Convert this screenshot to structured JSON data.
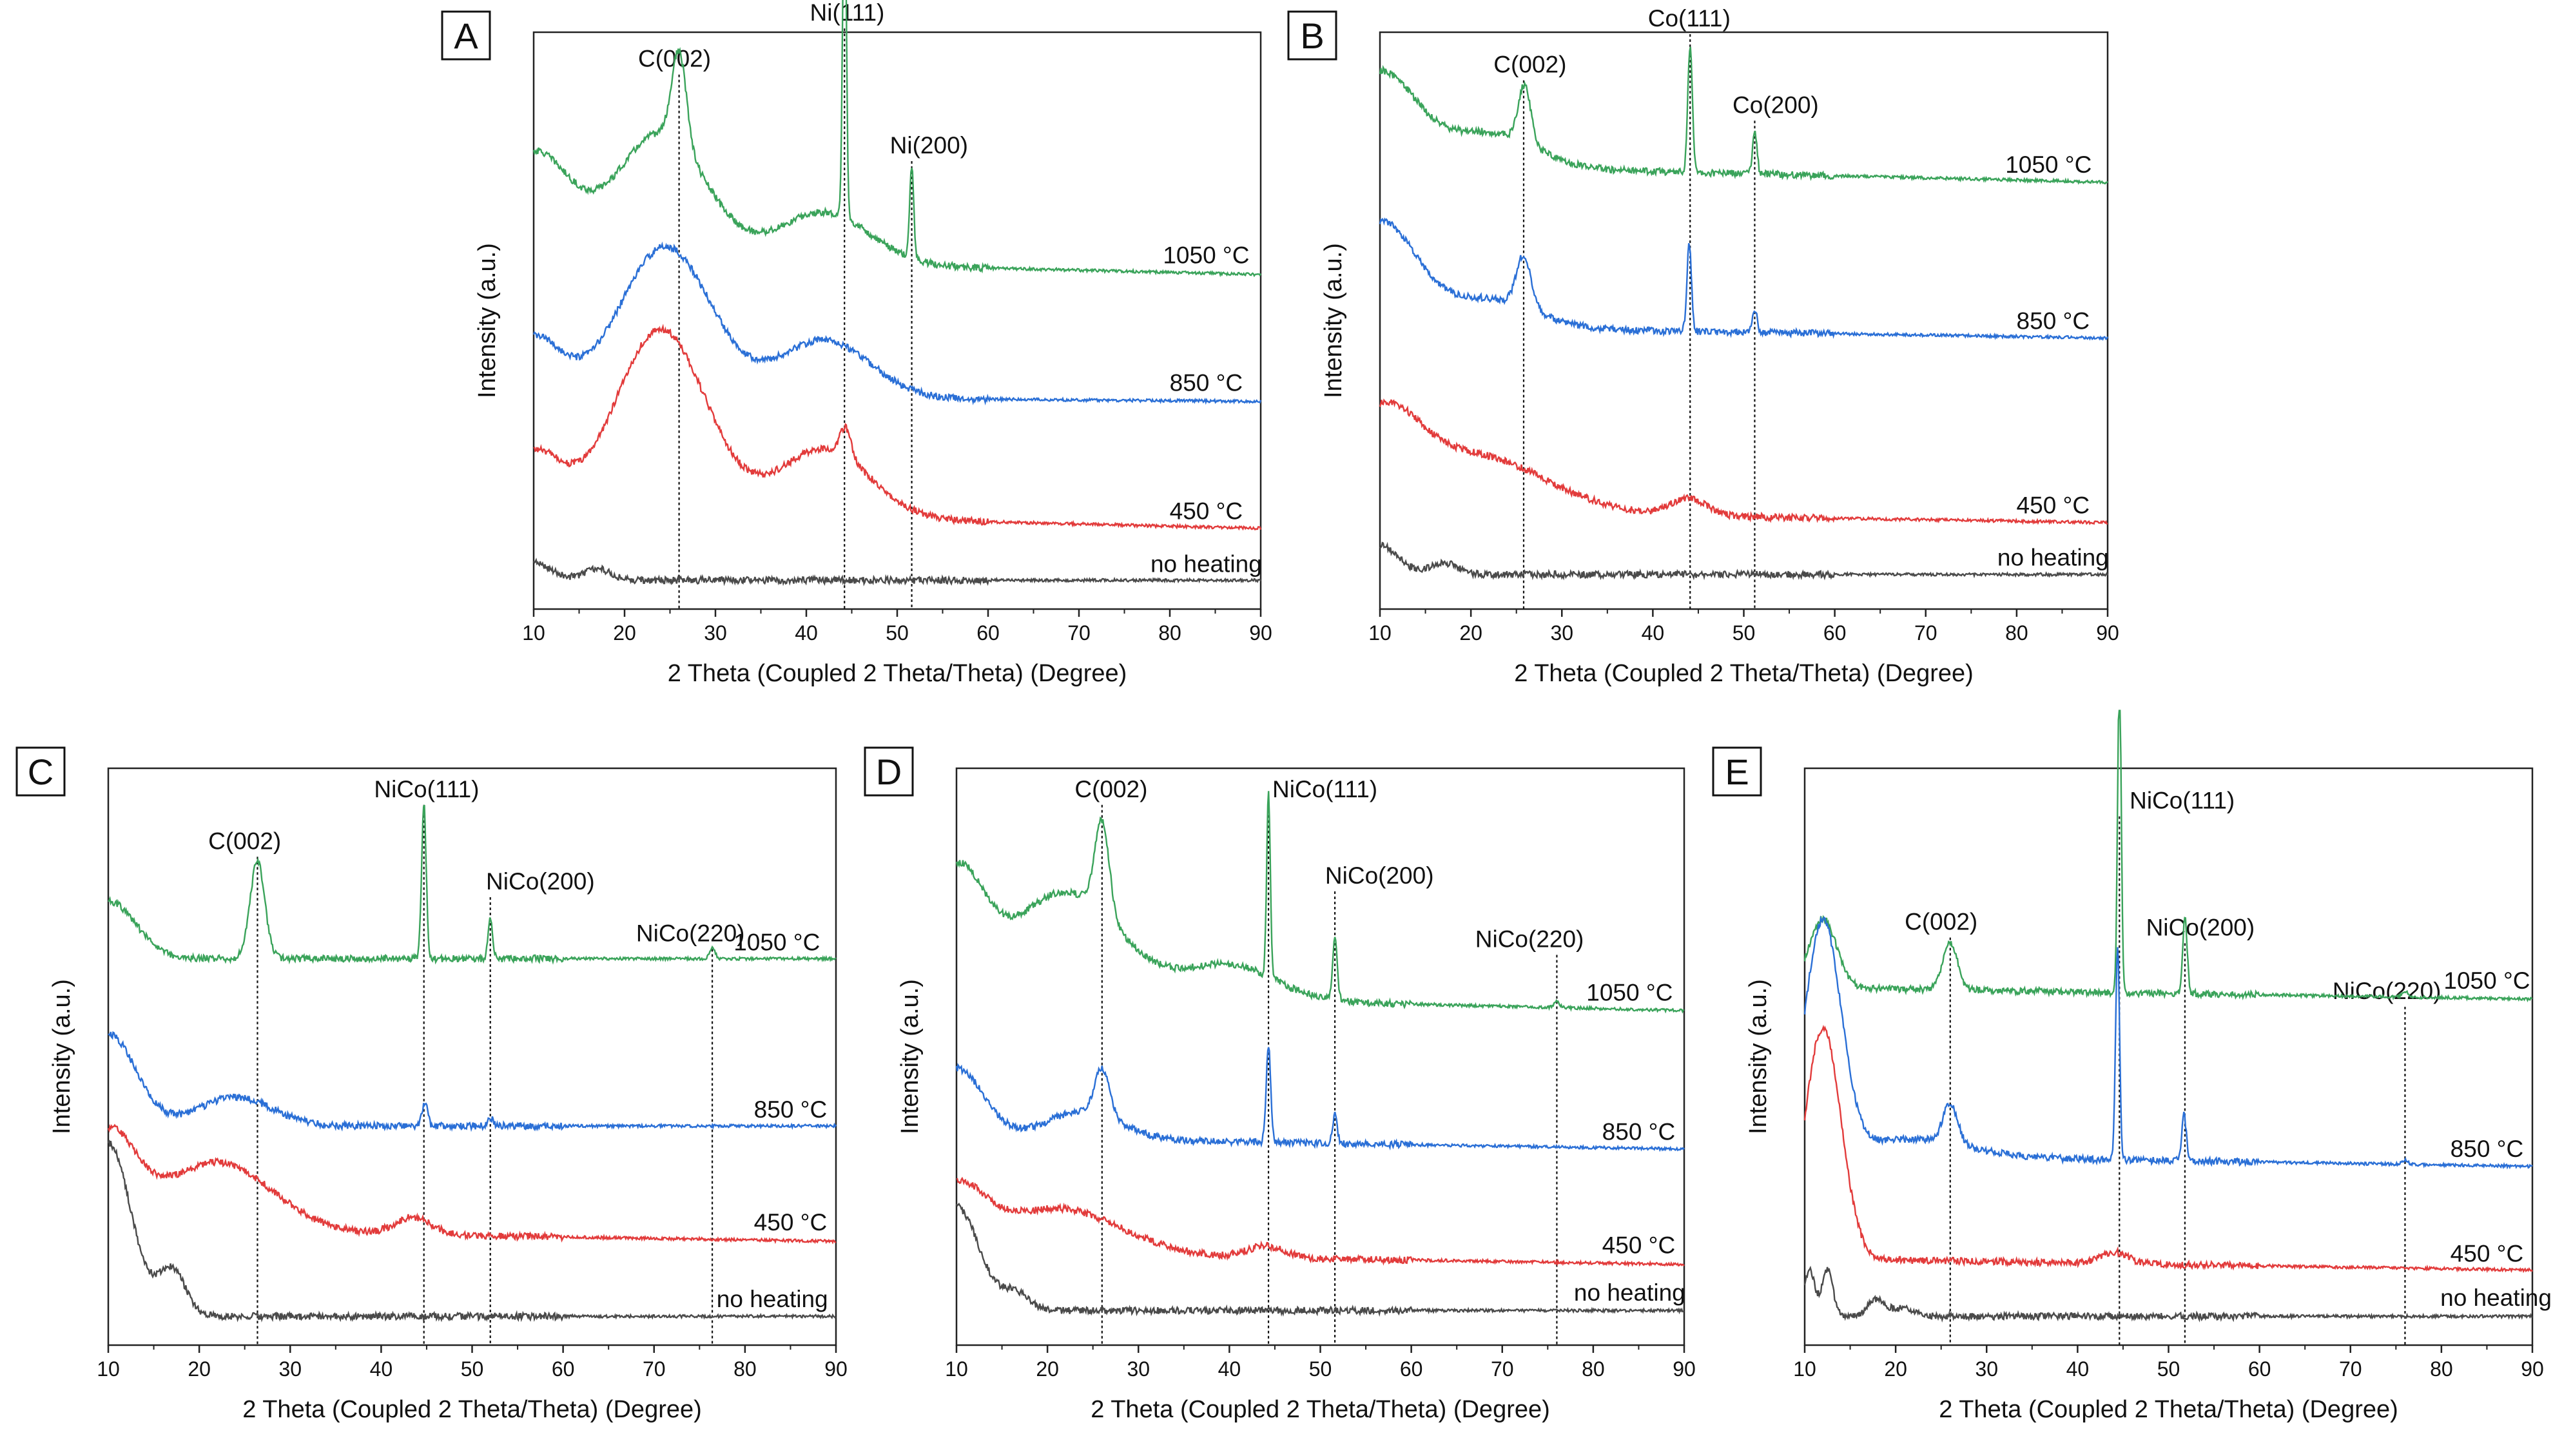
{
  "figure": {
    "description_panels": [
      "A",
      "B",
      "C",
      "D",
      "E"
    ]
  },
  "chart_data": [
    {
      "id": "A",
      "type": "line",
      "panel_label": "A",
      "xlabel": "2 Theta (Coupled 2 Theta/Theta) (Degree)",
      "ylabel": "Intensity (a.u.)",
      "xlim": [
        10,
        90
      ],
      "ylim": [
        0,
        1
      ],
      "xticks": [
        10,
        20,
        30,
        40,
        50,
        60,
        70,
        80,
        90
      ],
      "colors": {
        "1050": "#3aa35a",
        "850": "#2a6fd6",
        "450": "#e23b3b",
        "none": "#4a4a4a"
      },
      "series": [
        {
          "name": "1050 °C",
          "color_key": "1050",
          "label": "1050 °C",
          "label_x": 84,
          "offset": 0.58,
          "decay": 0.03,
          "amorph": [
            [
              10,
              0.18,
              4
            ],
            [
              24,
              0.22,
              5
            ],
            [
              42,
              0.09,
              5
            ]
          ],
          "peaks": [
            [
              26.0,
              0.16,
              0.8
            ],
            [
              44.2,
              0.62,
              0.2
            ],
            [
              51.6,
              0.16,
              0.22
            ]
          ]
        },
        {
          "name": "850 °C",
          "color_key": "850",
          "label": "850 °C",
          "label_x": 84,
          "offset": 0.36,
          "decay": 0.01,
          "amorph": [
            [
              10,
              0.1,
              3
            ],
            [
              24.5,
              0.26,
              5
            ],
            [
              42,
              0.1,
              5
            ]
          ],
          "peaks": []
        },
        {
          "name": "450 °C",
          "color_key": "450",
          "label": "450 °C",
          "label_x": 84,
          "offset": 0.14,
          "decay": 0.03,
          "amorph": [
            [
              10,
              0.1,
              3
            ],
            [
              24,
              0.32,
              5
            ],
            [
              42,
              0.12,
              5
            ]
          ],
          "peaks": [
            [
              44.3,
              0.05,
              0.6
            ]
          ]
        },
        {
          "name": "no heating",
          "color_key": "none",
          "label": "no heating",
          "label_x": 84,
          "offset": 0.05,
          "decay": 0.0,
          "amorph": [
            [
              10,
              0.03,
              2
            ],
            [
              17,
              0.02,
              1.5
            ]
          ],
          "peaks": []
        }
      ],
      "annotations": [
        {
          "label": "C(002)",
          "x": 26.0,
          "text_x": 25.5,
          "text_level": 0.94
        },
        {
          "label": "Ni(111)",
          "x": 44.2,
          "text_x": 44.5,
          "text_level": 1.02
        },
        {
          "label": "Ni(200)",
          "x": 51.6,
          "text_x": 53.5,
          "text_level": 0.79
        }
      ]
    },
    {
      "id": "B",
      "type": "line",
      "panel_label": "B",
      "xlabel": "2 Theta (Coupled 2 Theta/Theta) (Degree)",
      "ylabel": "Intensity (a.u.)",
      "xlim": [
        10,
        90
      ],
      "ylim": [
        0,
        1
      ],
      "xticks": [
        10,
        20,
        30,
        40,
        50,
        60,
        70,
        80,
        90
      ],
      "colors": {
        "1050": "#3aa35a",
        "850": "#2a6fd6",
        "450": "#e23b3b",
        "none": "#4a4a4a"
      },
      "series": [
        {
          "name": "1050 °C",
          "color_key": "1050",
          "label": "1050 °C",
          "label_x": 83.5,
          "offset": 0.74,
          "decay": 0.03,
          "amorph": [
            [
              10,
              0.16,
              4
            ],
            [
              22,
              0.06,
              5
            ]
          ],
          "peaks": [
            [
              25.9,
              0.1,
              0.7
            ],
            [
              44.1,
              0.22,
              0.25
            ],
            [
              51.2,
              0.07,
              0.25
            ]
          ]
        },
        {
          "name": "850 °C",
          "color_key": "850",
          "label": "850 °C",
          "label_x": 84,
          "offset": 0.47,
          "decay": 0.02,
          "amorph": [
            [
              10,
              0.18,
              4
            ],
            [
              22,
              0.05,
              5
            ]
          ],
          "peaks": [
            [
              25.8,
              0.09,
              0.8
            ],
            [
              44.0,
              0.15,
              0.25
            ],
            [
              51.2,
              0.04,
              0.25
            ]
          ]
        },
        {
          "name": "450 °C",
          "color_key": "450",
          "label": "450 °C",
          "label_x": 84,
          "offset": 0.15,
          "decay": 0.02,
          "amorph": [
            [
              10,
              0.14,
              4
            ],
            [
              20,
              0.1,
              8
            ],
            [
              44,
              0.03,
              2
            ]
          ],
          "peaks": []
        },
        {
          "name": "no heating",
          "color_key": "none",
          "label": "no heating",
          "label_x": 84,
          "offset": 0.06,
          "decay": 0.0,
          "amorph": [
            [
              10,
              0.05,
              2
            ],
            [
              17,
              0.02,
              1.5
            ]
          ],
          "peaks": []
        }
      ],
      "annotations": [
        {
          "label": "C(002)",
          "x": 25.8,
          "text_x": 26.5,
          "text_level": 0.93
        },
        {
          "label": "Co(111)",
          "x": 44.1,
          "text_x": 44.0,
          "text_level": 1.01
        },
        {
          "label": "Co(200)",
          "x": 51.2,
          "text_x": 53.5,
          "text_level": 0.86
        }
      ]
    },
    {
      "id": "C",
      "type": "line",
      "panel_label": "C",
      "xlabel": "2 Theta (Coupled 2 Theta/Theta) (Degree)",
      "ylabel": "Intensity (a.u.)",
      "xlim": [
        10,
        90
      ],
      "ylim": [
        0,
        1
      ],
      "xticks": [
        10,
        20,
        30,
        40,
        50,
        60,
        70,
        80,
        90
      ],
      "colors": {
        "1050": "#3aa35a",
        "850": "#2a6fd6",
        "450": "#e23b3b",
        "none": "#4a4a4a"
      },
      "series": [
        {
          "name": "1050 °C",
          "color_key": "1050",
          "label": "1050 °C",
          "label_x": 83.5,
          "offset": 0.67,
          "decay": 0.0,
          "amorph": [
            [
              10,
              0.1,
              3
            ]
          ],
          "peaks": [
            [
              26.4,
              0.17,
              0.8
            ],
            [
              44.7,
              0.27,
              0.25
            ],
            [
              52.0,
              0.07,
              0.25
            ],
            [
              76.4,
              0.02,
              0.3
            ]
          ]
        },
        {
          "name": "850 °C",
          "color_key": "850",
          "label": "850 °C",
          "label_x": 85,
          "offset": 0.38,
          "decay": 0.0,
          "amorph": [
            [
              10,
              0.16,
              3
            ],
            [
              24,
              0.05,
              4
            ]
          ],
          "peaks": [
            [
              44.8,
              0.04,
              0.3
            ],
            [
              52.0,
              0.015,
              0.3
            ]
          ]
        },
        {
          "name": "450 °C",
          "color_key": "450",
          "label": "450 °C",
          "label_x": 85,
          "offset": 0.18,
          "decay": 0.02,
          "amorph": [
            [
              10,
              0.16,
              3
            ],
            [
              22,
              0.12,
              6
            ],
            [
              43.5,
              0.03,
              2
            ]
          ],
          "peaks": []
        },
        {
          "name": "no heating",
          "color_key": "none",
          "label": "no heating",
          "label_x": 83,
          "offset": 0.05,
          "decay": 0.0,
          "amorph": [
            [
              10,
              0.3,
              2.5
            ],
            [
              17,
              0.08,
              1.5
            ]
          ],
          "peaks": []
        }
      ],
      "annotations": [
        {
          "label": "C(002)",
          "x": 26.4,
          "text_x": 25.0,
          "text_level": 0.86
        },
        {
          "label": "NiCo(111)",
          "x": 44.7,
          "text_x": 45.0,
          "text_level": 0.95
        },
        {
          "label": "NiCo(200)",
          "x": 52.0,
          "text_x": 57.5,
          "text_level": 0.79
        },
        {
          "label": "NiCo(220)",
          "x": 76.4,
          "text_x": 74.0,
          "text_level": 0.7
        }
      ]
    },
    {
      "id": "D",
      "type": "line",
      "panel_label": "D",
      "xlabel": "2 Theta (Coupled 2 Theta/Theta) (Degree)",
      "ylabel": "Intensity (a.u.)",
      "xlim": [
        10,
        90
      ],
      "ylim": [
        0,
        1
      ],
      "xticks": [
        10,
        20,
        30,
        40,
        50,
        60,
        70,
        80,
        90
      ],
      "colors": {
        "1050": "#3aa35a",
        "850": "#2a6fd6",
        "450": "#e23b3b",
        "none": "#4a4a4a"
      },
      "series": [
        {
          "name": "1050 °C",
          "color_key": "1050",
          "label": "1050 °C",
          "label_x": 84,
          "offset": 0.58,
          "decay": 0.03,
          "amorph": [
            [
              10,
              0.2,
              3
            ],
            [
              22,
              0.18,
              6
            ],
            [
              40,
              0.06,
              5
            ]
          ],
          "peaks": [
            [
              26.0,
              0.16,
              0.8
            ],
            [
              44.3,
              0.32,
              0.2
            ],
            [
              51.6,
              0.11,
              0.25
            ],
            [
              76.0,
              0.01,
              0.3
            ]
          ]
        },
        {
          "name": "850 °C",
          "color_key": "850",
          "label": "850 °C",
          "label_x": 85,
          "offset": 0.34,
          "decay": 0.02,
          "amorph": [
            [
              10,
              0.12,
              3
            ],
            [
              24,
              0.05,
              4
            ]
          ],
          "peaks": [
            [
              26.0,
              0.08,
              0.8
            ],
            [
              44.3,
              0.17,
              0.25
            ],
            [
              51.6,
              0.05,
              0.25
            ]
          ]
        },
        {
          "name": "450 °C",
          "color_key": "450",
          "label": "450 °C",
          "label_x": 85,
          "offset": 0.14,
          "decay": 0.02,
          "amorph": [
            [
              10,
              0.1,
              3
            ],
            [
              21,
              0.08,
              7
            ],
            [
              44,
              0.02,
              2
            ]
          ],
          "peaks": []
        },
        {
          "name": "no heating",
          "color_key": "none",
          "label": "no heating",
          "label_x": 84,
          "offset": 0.06,
          "decay": 0.0,
          "amorph": [
            [
              10,
              0.18,
              2.5
            ],
            [
              16.5,
              0.03,
              1.5
            ]
          ],
          "peaks": []
        }
      ],
      "annotations": [
        {
          "label": "C(002)",
          "x": 26.0,
          "text_x": 27.0,
          "text_level": 0.95
        },
        {
          "label": "NiCo(111)",
          "x": 44.3,
          "text_x": 50.5,
          "text_level": 0.95
        },
        {
          "label": "NiCo(200)",
          "x": 51.6,
          "text_x": 56.5,
          "text_level": 0.8
        },
        {
          "label": "NiCo(220)",
          "x": 76.0,
          "text_x": 73.0,
          "text_level": 0.69
        }
      ]
    },
    {
      "id": "E",
      "type": "line",
      "panel_label": "E",
      "xlabel": "2 Theta (Coupled 2 Theta/Theta) (Degree)",
      "ylabel": "Intensity (a.u.)",
      "xlim": [
        10,
        90
      ],
      "ylim": [
        0,
        1
      ],
      "xticks": [
        10,
        20,
        30,
        40,
        50,
        60,
        70,
        80,
        90
      ],
      "colors": {
        "1050": "#3aa35a",
        "850": "#2a6fd6",
        "450": "#e23b3b",
        "none": "#4a4a4a"
      },
      "series": [
        {
          "name": "1050 °C",
          "color_key": "1050",
          "label": "1050 °C",
          "label_x": 85,
          "offset": 0.6,
          "decay": 0.02,
          "amorph": [
            [
              12,
              0.12,
              1.5
            ]
          ],
          "peaks": [
            [
              26.0,
              0.08,
              0.8
            ],
            [
              44.6,
              0.55,
              0.2
            ],
            [
              51.8,
              0.13,
              0.25
            ],
            [
              76.0,
              0.01,
              0.3
            ]
          ]
        },
        {
          "name": "850 °C",
          "color_key": "850",
          "label": "850 °C",
          "label_x": 85,
          "offset": 0.31,
          "decay": 0.02,
          "amorph": [
            [
              12,
              0.4,
              2.0
            ],
            [
              22,
              0.03,
              6
            ]
          ],
          "peaks": [
            [
              26.0,
              0.07,
              0.8
            ],
            [
              44.4,
              0.37,
              0.22
            ],
            [
              51.7,
              0.08,
              0.25
            ],
            [
              76.0,
              0.008,
              0.3
            ]
          ]
        },
        {
          "name": "450 °C",
          "color_key": "450",
          "label": "450 °C",
          "label_x": 85,
          "offset": 0.13,
          "decay": 0.02,
          "amorph": [
            [
              12,
              0.4,
              2.0
            ],
            [
              44,
              0.02,
              1.5
            ]
          ],
          "peaks": []
        },
        {
          "name": "no heating",
          "color_key": "none",
          "label": "no heating",
          "label_x": 86,
          "offset": 0.05,
          "decay": 0.0,
          "amorph": [
            [
              10.5,
              0.08,
              0.6
            ],
            [
              12.5,
              0.08,
              0.6
            ],
            [
              18,
              0.03,
              1.0
            ],
            [
              21,
              0.015,
              1.0
            ]
          ],
          "peaks": []
        }
      ],
      "annotations": [
        {
          "label": "C(002)",
          "x": 26.0,
          "text_x": 25.0,
          "text_level": 0.72
        },
        {
          "label": "NiCo(111)",
          "x": 44.6,
          "text_x": 51.5,
          "text_level": 0.93
        },
        {
          "label": "NiCo(200)",
          "x": 51.8,
          "text_x": 53.5,
          "text_level": 0.71
        },
        {
          "label": "NiCo(220)",
          "x": 76.0,
          "text_x": 74.0,
          "text_level": 0.6
        }
      ]
    }
  ]
}
